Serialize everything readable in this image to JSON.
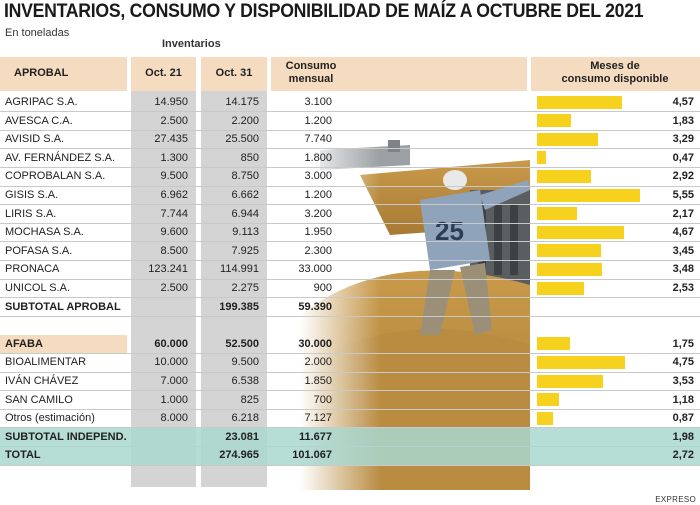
{
  "title": "INVENTARIOS, CONSUMO Y DISPONIBILIDAD DE MAÍZ A OCTUBRE DEL 2021",
  "unit": "En toneladas",
  "group_header": "Inventarios",
  "headers": {
    "company": "APROBAL",
    "oct21": "Oct. 21",
    "oct31": "Oct. 31",
    "consumo_l1": "Consumo",
    "consumo_l2": "mensual",
    "meses_l1": "Meses de",
    "meses_l2": "consumo disponible"
  },
  "credit": "EXPRESO",
  "colors": {
    "bar": "#f6d21f",
    "header_band": "#f5dcc0",
    "teal": "#a9d7cf",
    "gray_band": "#d4d4d4"
  },
  "chart_data": {
    "type": "table",
    "title": "INVENTARIOS, CONSUMO Y DISPONIBILIDAD DE MAÍZ A OCTUBRE DEL 2021",
    "unit": "En toneladas",
    "columns": [
      "Oct. 21",
      "Oct. 31",
      "Consumo mensual",
      "Meses de consumo disponible"
    ],
    "bar_column": "Meses de consumo disponible",
    "rows": [
      {
        "name": "AGRIPAC S.A.",
        "oct21": "14.950",
        "oct31": "14.175",
        "consumo": "3.100",
        "meses": "4,57",
        "meses_value": 4.57
      },
      {
        "name": "AVESCA C.A.",
        "oct21": "2.500",
        "oct31": "2.200",
        "consumo": "1.200",
        "meses": "1,83",
        "meses_value": 1.83
      },
      {
        "name": "AVISID S.A.",
        "oct21": "27.435",
        "oct31": "25.500",
        "consumo": "7.740",
        "meses": "3,29",
        "meses_value": 3.29
      },
      {
        "name": "AV. FERNÁNDEZ S.A.",
        "oct21": "1.300",
        "oct31": "850",
        "consumo": "1.800",
        "meses": "0,47",
        "meses_value": 0.47
      },
      {
        "name": "COPROBALAN S.A.",
        "oct21": "9.500",
        "oct31": "8.750",
        "consumo": "3.000",
        "meses": "2,92",
        "meses_value": 2.92
      },
      {
        "name": "GISIS S.A.",
        "oct21": "6.962",
        "oct31": "6.662",
        "consumo": "1.200",
        "meses": "5,55",
        "meses_value": 5.55
      },
      {
        "name": "LIRIS S.A.",
        "oct21": "7.744",
        "oct31": "6.944",
        "consumo": "3.200",
        "meses": "2,17",
        "meses_value": 2.17
      },
      {
        "name": "MOCHASA S.A.",
        "oct21": "9.600",
        "oct31": "9.113",
        "consumo": "1.950",
        "meses": "4,67",
        "meses_value": 4.67
      },
      {
        "name": "POFASA S.A.",
        "oct21": "8.500",
        "oct31": "7.925",
        "consumo": "2.300",
        "meses": "3,45",
        "meses_value": 3.45
      },
      {
        "name": "PRONACA",
        "oct21": "123.241",
        "oct31": "114.991",
        "consumo": "33.000",
        "meses": "3,48",
        "meses_value": 3.48
      },
      {
        "name": "UNICOL S.A.",
        "oct21": "2.500",
        "oct31": "2.275",
        "consumo": "900",
        "meses": "2,53",
        "meses_value": 2.53
      },
      {
        "name": "SUBTOTAL APROBAL",
        "oct21": "",
        "oct31": "199.385",
        "consumo": "59.390",
        "meses": "",
        "meses_value": null,
        "style": "subtotal"
      },
      {
        "name": "",
        "oct21": "",
        "oct31": "",
        "consumo": "",
        "meses": "",
        "meses_value": null,
        "style": "spacer"
      },
      {
        "name": "AFABA",
        "oct21": "60.000",
        "oct31": "52.500",
        "consumo": "30.000",
        "meses": "1,75",
        "meses_value": 1.75,
        "style": "group"
      },
      {
        "name": "BIOALIMENTAR",
        "oct21": "10.000",
        "oct31": "9.500",
        "consumo": "2.000",
        "meses": "4,75",
        "meses_value": 4.75
      },
      {
        "name": "IVÁN CHÁVEZ",
        "oct21": "7.000",
        "oct31": "6.538",
        "consumo": "1.850",
        "meses": "3,53",
        "meses_value": 3.53
      },
      {
        "name": "SAN CAMILO",
        "oct21": "1.000",
        "oct31": "825",
        "consumo": "700",
        "meses": "1,18",
        "meses_value": 1.18
      },
      {
        "name": "Otros (estimación)",
        "oct21": "8.000",
        "oct31": "6.218",
        "consumo": "7.127",
        "meses": "0,87",
        "meses_value": 0.87
      },
      {
        "name": "SUBTOTAL INDEPEND.",
        "oct21": "",
        "oct31": "23.081",
        "consumo": "11.677",
        "meses": "1,98",
        "meses_value": null,
        "style": "teal"
      },
      {
        "name": "TOTAL",
        "oct21": "",
        "oct31": "274.965",
        "consumo": "101.067",
        "meses": "2,72",
        "meses_value": null,
        "style": "teal"
      }
    ]
  }
}
